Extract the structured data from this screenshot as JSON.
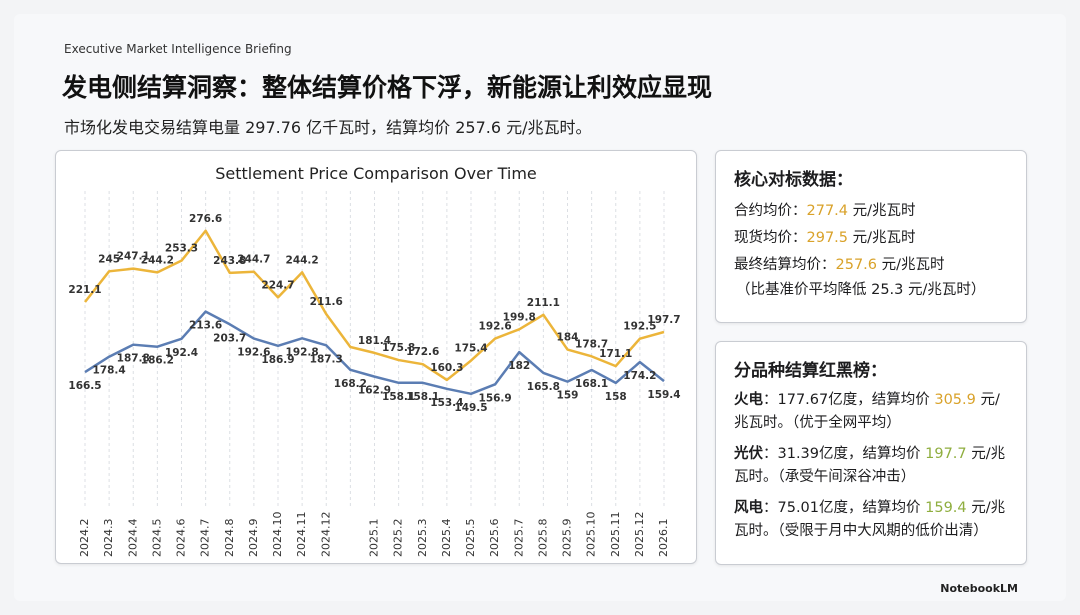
{
  "header": {
    "eyebrow": "Executive Market Intelligence Briefing",
    "title": "发电侧结算洞察：整体结算价格下浮，新能源让利效应显现",
    "subtitle": "市场化发电交易结算电量 297.76 亿千瓦时，结算均价 257.6 元/兆瓦时。"
  },
  "chart_data": {
    "type": "line",
    "title": "Settlement Price Comparison Over Time",
    "categories": [
      "2024.2",
      "2024.3",
      "2024.4",
      "2024.5",
      "2024.6",
      "2024.7",
      "2024.8",
      "2024.9",
      "2024.10",
      "2024.11",
      "2024.12",
      null,
      "2025.1",
      "2025.2",
      "2025.3",
      "2025.4",
      "2025.5",
      "2025.6",
      "2025.7",
      "2025.8",
      "2025.9",
      "2025.10",
      "2025.11",
      "2025.12",
      "2026.1"
    ],
    "series": [
      {
        "color": "#ecb53a",
        "values": [
          221.1,
          245,
          247.1,
          244.2,
          253.3,
          276.6,
          243.8,
          244.7,
          224.7,
          244.2,
          211.6,
          186,
          181.4,
          175.8,
          172.6,
          160.3,
          175.4,
          192.6,
          199.8,
          211.1,
          184,
          178.7,
          171.1,
          192.5,
          197.7
        ],
        "value_labels": [
          "221.1",
          "245",
          "247.1",
          "244.2",
          "253.3",
          "276.6",
          "243.8",
          "244.7",
          "224.7",
          "244.2",
          "211.6",
          null,
          "181.4",
          "175.8",
          "172.6",
          "160.3",
          "175.4",
          "192.6",
          "199.8",
          "211.1",
          "184",
          "178.7",
          "171.1",
          "192.5",
          "197.7"
        ]
      },
      {
        "color": "#5b7db3",
        "values": [
          166.5,
          178.4,
          187.8,
          186.2,
          192.4,
          213.6,
          203.7,
          192.6,
          186.9,
          192.8,
          187.3,
          168.2,
          162.9,
          158.1,
          158.1,
          153.4,
          149.5,
          156.9,
          182,
          165.8,
          159,
          168.1,
          158,
          174.2,
          159.4
        ]
      }
    ],
    "ylim": [
      140,
      285
    ],
    "grid": true
  },
  "benchmarks": {
    "title": "核心对标数据：",
    "items": [
      {
        "label": "合约均价：",
        "value": "277.4",
        "unit": "元/兆瓦时"
      },
      {
        "label": "现货均价：",
        "value": "297.5",
        "unit": "元/兆瓦时"
      },
      {
        "label": "最终结算均价：",
        "value": "257.6",
        "unit": "元/兆瓦时"
      }
    ],
    "note": "（比基准价平均降低 25.3 元/兆瓦时）"
  },
  "ranking": {
    "title": "分品种结算红黑榜：",
    "items": [
      {
        "name": "火电",
        "before": "：177.67亿度，结算均价 ",
        "value": "305.9",
        "after": " 元/兆瓦时。（优于全网平均）"
      },
      {
        "name": "光伏",
        "before": "：31.39亿度，结算均价 ",
        "value": "197.7",
        "after": " 元/兆瓦时。（承受午间深谷冲击）"
      },
      {
        "name": "风电",
        "before": "：75.01亿度，结算均价 ",
        "value": "159.4",
        "after": " 元/兆瓦时。（受限于月中大风期的低价出清）"
      }
    ]
  },
  "brand": "NotebookLM"
}
